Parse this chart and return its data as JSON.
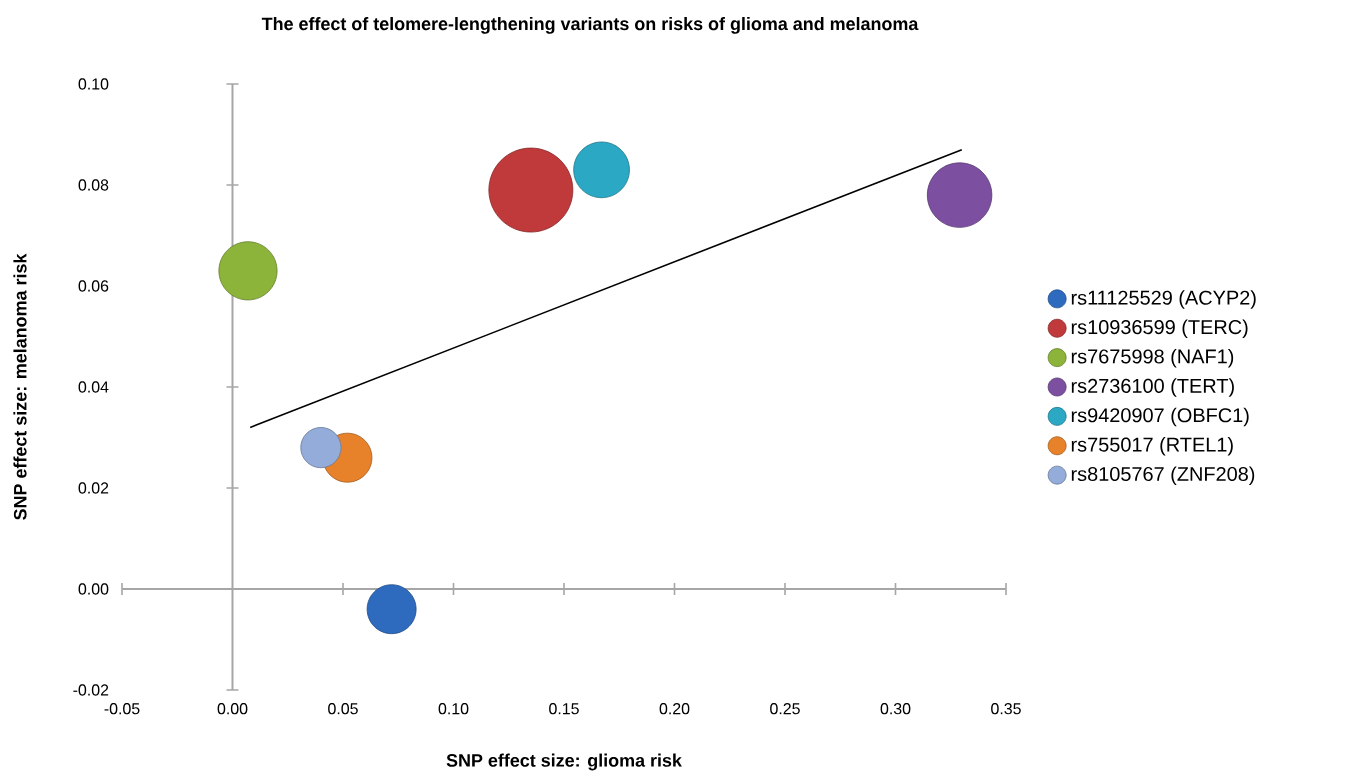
{
  "chart_data": {
    "type": "bubble",
    "title": "The effect of telomere-lengthening variants on risks of glioma and melanoma",
    "xlabel": "SNP effect size: glioma risk",
    "ylabel": "SNP effect size: melanoma risk",
    "xlim": [
      -0.05,
      0.35
    ],
    "ylim": [
      -0.02,
      0.1
    ],
    "xticks": [
      {
        "value": -0.05,
        "label": "-0.05"
      },
      {
        "value": 0,
        "label": "0.00"
      },
      {
        "value": 0.05,
        "label": "0.05"
      },
      {
        "value": 0.1,
        "label": "0.10"
      },
      {
        "value": 0.15,
        "label": "0.15"
      },
      {
        "value": 0.2,
        "label": "0.20"
      },
      {
        "value": 0.25,
        "label": "0.25"
      },
      {
        "value": 0.3,
        "label": "0.30"
      },
      {
        "value": 0.35,
        "label": "0.35"
      }
    ],
    "yticks": [
      {
        "value": -0.02,
        "label": "-0.02"
      },
      {
        "value": 0,
        "label": "0.00"
      },
      {
        "value": 0.02,
        "label": "0.02"
      },
      {
        "value": 0.04,
        "label": "0.04"
      },
      {
        "value": 0.06,
        "label": "0.06"
      },
      {
        "value": 0.08,
        "label": "0.08"
      },
      {
        "value": 0.1,
        "label": "0.10"
      }
    ],
    "legend": "right",
    "series": [
      {
        "name": "rs11125529 (ACYP2)",
        "color": "#2e6bbf",
        "x": [
          0.072
        ],
        "values": [
          -0.004
        ],
        "sizes": [
          0.34
        ]
      },
      {
        "name": "rs10936599 (TERC)",
        "color": "#c0393b",
        "x": [
          0.135
        ],
        "values": [
          0.079
        ],
        "sizes": [
          1
        ]
      },
      {
        "name": "rs7675998 (NAF1)",
        "color": "#8cb33a",
        "x": [
          0.007
        ],
        "values": [
          0.063
        ],
        "sizes": [
          0.48
        ]
      },
      {
        "name": "rs2736100 (TERT)",
        "color": "#7c4fa0",
        "x": [
          0.329
        ],
        "values": [
          0.078
        ],
        "sizes": [
          0.59
        ]
      },
      {
        "name": "rs9420907 (OBFC1)",
        "color": "#2aa8c4",
        "x": [
          0.167
        ],
        "values": [
          0.083
        ],
        "sizes": [
          0.44
        ]
      },
      {
        "name": "rs755017 (RTEL1)",
        "color": "#e8822a",
        "x": [
          0.052
        ],
        "values": [
          0.026
        ],
        "sizes": [
          0.34
        ]
      },
      {
        "name": "rs8105767 (ZNF208)",
        "color": "#93acd9",
        "x": [
          0.04
        ],
        "values": [
          0.028
        ],
        "sizes": [
          0.23
        ]
      },
      {
        "type": "line",
        "color": "#000000",
        "x": [
          0.008,
          0.33
        ],
        "values": [
          0.032,
          0.087
        ]
      }
    ]
  }
}
